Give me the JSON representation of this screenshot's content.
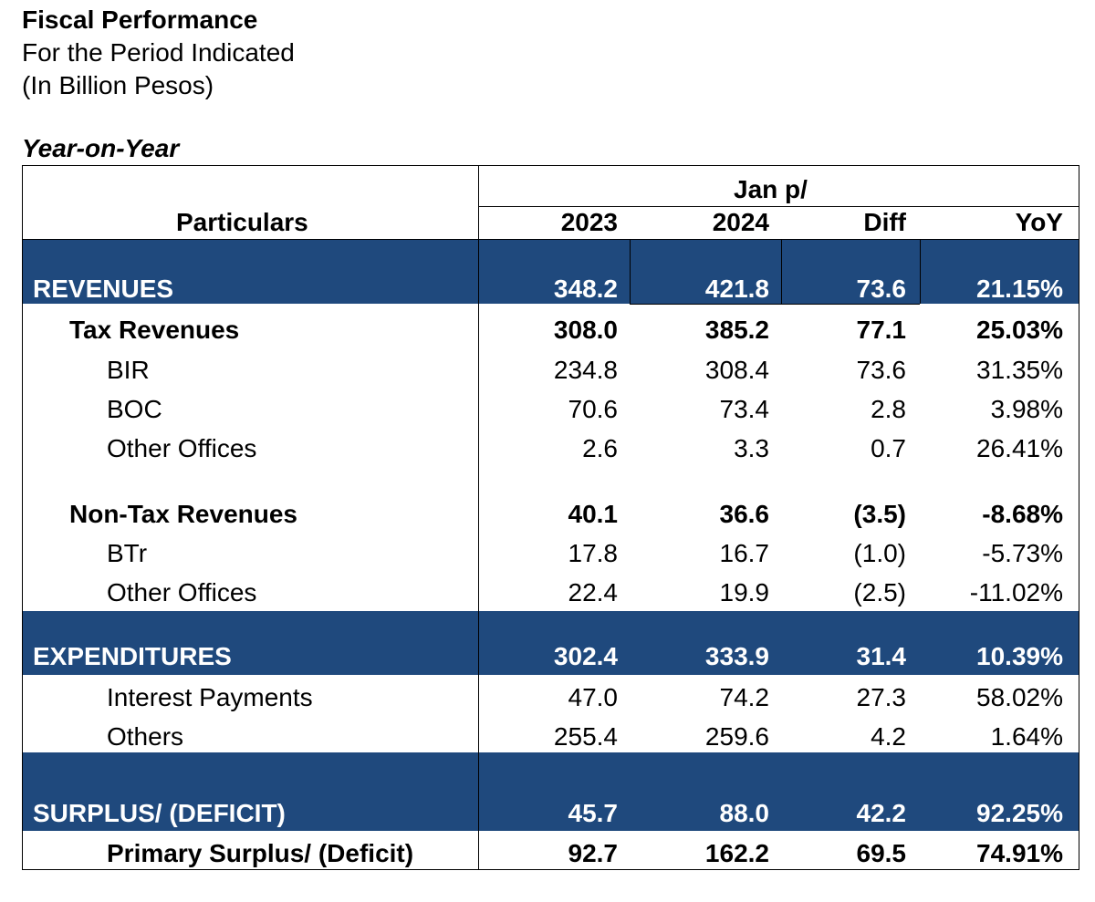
{
  "header": {
    "title": "Fiscal Performance",
    "subtitle_period": "For the Period Indicated",
    "subtitle_units": "(In Billion Pesos)",
    "section_label": "Year-on-Year"
  },
  "table": {
    "group_header": "Jan p/",
    "columns": {
      "particulars": "Particulars",
      "y2023": "2023",
      "y2024": "2024",
      "diff": "Diff",
      "yoy": "YoY"
    },
    "rows": [
      {
        "label": "REVENUES",
        "v2023": "348.2",
        "v2024": "421.8",
        "diff": "73.6",
        "yoy": "21.15%"
      },
      {
        "label": "Tax Revenues",
        "v2023": "308.0",
        "v2024": "385.2",
        "diff": "77.1",
        "yoy": "25.03%"
      },
      {
        "label": "BIR",
        "v2023": "234.8",
        "v2024": "308.4",
        "diff": "73.6",
        "yoy": "31.35%"
      },
      {
        "label": "BOC",
        "v2023": "70.6",
        "v2024": "73.4",
        "diff": "2.8",
        "yoy": "3.98%"
      },
      {
        "label": "Other Offices",
        "v2023": "2.6",
        "v2024": "3.3",
        "diff": "0.7",
        "yoy": "26.41%"
      },
      {
        "label": "Non-Tax Revenues",
        "v2023": "40.1",
        "v2024": "36.6",
        "diff": "(3.5)",
        "yoy": "-8.68%"
      },
      {
        "label": "BTr",
        "v2023": "17.8",
        "v2024": "16.7",
        "diff": "(1.0)",
        "yoy": "-5.73%"
      },
      {
        "label": "Other Offices",
        "v2023": "22.4",
        "v2024": "19.9",
        "diff": "(2.5)",
        "yoy": "-11.02%"
      },
      {
        "label": "EXPENDITURES",
        "v2023": "302.4",
        "v2024": "333.9",
        "diff": "31.4",
        "yoy": "10.39%"
      },
      {
        "label": "Interest Payments",
        "v2023": "47.0",
        "v2024": "74.2",
        "diff": "27.3",
        "yoy": "58.02%"
      },
      {
        "label": "Others",
        "v2023": "255.4",
        "v2024": "259.6",
        "diff": "4.2",
        "yoy": "1.64%"
      },
      {
        "label": "SURPLUS/ (DEFICIT)",
        "v2023": "45.7",
        "v2024": "88.0",
        "diff": "42.2",
        "yoy": "92.25%"
      },
      {
        "label": "Primary Surplus/ (Deficit)",
        "v2023": "92.7",
        "v2024": "162.2",
        "diff": "69.5",
        "yoy": "74.91%"
      }
    ]
  },
  "colors": {
    "band": "#1f497d",
    "band_text": "#ffffff",
    "text": "#000000"
  }
}
